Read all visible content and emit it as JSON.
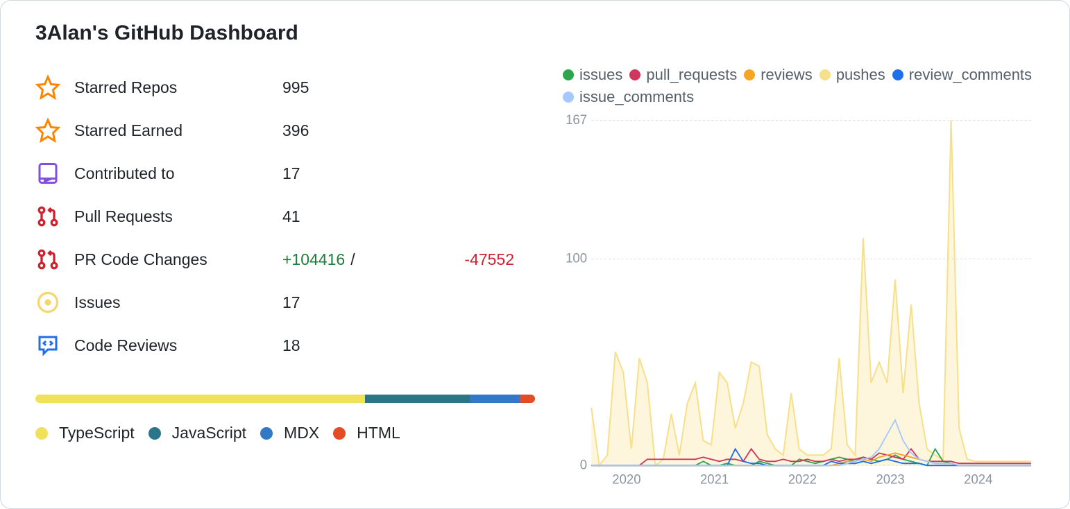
{
  "title": "3Alan's GitHub Dashboard",
  "stats": [
    {
      "icon": "star",
      "icon_color": "#fb8500",
      "label": "Starred Repos",
      "value": "995"
    },
    {
      "icon": "star",
      "icon_color": "#fb8500",
      "label": "Starred Earned",
      "value": "396"
    },
    {
      "icon": "repo",
      "icon_color": "#8250df",
      "label": "Contributed to",
      "value": "17"
    },
    {
      "icon": "pr",
      "icon_color": "#cf222e",
      "label": "Pull Requests",
      "value": "41"
    },
    {
      "icon": "pr",
      "icon_color": "#cf222e",
      "label": "PR Code Changes",
      "value": "",
      "additions": "+104416",
      "deletions": "-47552"
    },
    {
      "icon": "issue",
      "icon_color": "#f5d76e",
      "label": "Issues",
      "value": "17"
    },
    {
      "icon": "review",
      "icon_color": "#1f6feb",
      "label": "Code Reviews",
      "value": "18"
    }
  ],
  "languages": {
    "segments": [
      {
        "name": "TypeScript",
        "color": "#f1e05a",
        "pct": 66
      },
      {
        "name": "JavaScript",
        "color": "#2b7489",
        "pct": 21
      },
      {
        "name": "MDX",
        "color": "#3178c6",
        "pct": 10
      },
      {
        "name": "HTML",
        "color": "#e34c26",
        "pct": 3
      }
    ]
  },
  "chart": {
    "type": "area-line",
    "ylim": [
      0,
      167
    ],
    "yticks": [
      0,
      100,
      167
    ],
    "xlabels": [
      "2020",
      "2021",
      "2022",
      "2023",
      "2024"
    ],
    "background_color": "#ffffff",
    "grid_color": "#e0e0e0",
    "label_fontsize": 18,
    "label_color": "#8c959f",
    "series": [
      {
        "name": "issues",
        "color": "#2da44e",
        "fill": false
      },
      {
        "name": "pull_requests",
        "color": "#cf375d",
        "fill": false
      },
      {
        "name": "reviews",
        "color": "#f5a623",
        "fill": false
      },
      {
        "name": "pushes",
        "color": "#f7e08a",
        "fill": true,
        "fill_opacity": 0.3
      },
      {
        "name": "review_comments",
        "color": "#1f6feb",
        "fill": false
      },
      {
        "name": "issue_comments",
        "color": "#a6c8ff",
        "fill": false
      }
    ],
    "x_points": 56,
    "pushes": [
      28,
      0,
      5,
      55,
      45,
      8,
      52,
      40,
      0,
      3,
      25,
      5,
      30,
      40,
      12,
      10,
      45,
      40,
      18,
      30,
      50,
      48,
      15,
      8,
      5,
      35,
      8,
      5,
      5,
      5,
      8,
      52,
      10,
      5,
      110,
      40,
      50,
      40,
      90,
      35,
      78,
      30,
      8,
      5,
      3,
      167,
      18,
      3,
      2,
      2,
      2,
      2,
      2,
      2,
      2,
      2
    ],
    "issues": [
      0,
      0,
      0,
      0,
      0,
      0,
      0,
      0,
      0,
      0,
      0,
      0,
      0,
      0,
      2,
      0,
      0,
      1,
      0,
      0,
      0,
      2,
      1,
      0,
      0,
      0,
      3,
      2,
      1,
      2,
      3,
      4,
      3,
      2,
      4,
      3,
      2,
      3,
      5,
      3,
      2,
      1,
      0,
      8,
      2,
      1,
      0,
      0,
      0,
      0,
      0,
      0,
      0,
      0,
      0,
      0
    ],
    "pull_requests": [
      0,
      0,
      0,
      0,
      0,
      0,
      0,
      3,
      3,
      3,
      3,
      3,
      3,
      3,
      4,
      3,
      2,
      3,
      3,
      2,
      8,
      3,
      2,
      2,
      3,
      2,
      2,
      3,
      2,
      2,
      3,
      2,
      3,
      3,
      4,
      3,
      6,
      5,
      4,
      3,
      8,
      3,
      2,
      2,
      2,
      2,
      1,
      1,
      1,
      1,
      1,
      1,
      1,
      1,
      1,
      1
    ],
    "reviews": [
      0,
      0,
      0,
      0,
      0,
      0,
      0,
      0,
      0,
      0,
      0,
      0,
      0,
      0,
      0,
      0,
      0,
      0,
      0,
      0,
      0,
      0,
      0,
      0,
      0,
      0,
      0,
      0,
      0,
      0,
      0,
      1,
      2,
      2,
      3,
      2,
      4,
      5,
      6,
      5,
      4,
      3,
      2,
      1,
      1,
      1,
      0,
      0,
      0,
      0,
      0,
      0,
      0,
      0,
      0,
      0
    ],
    "review_comments": [
      0,
      0,
      0,
      0,
      0,
      0,
      0,
      0,
      0,
      0,
      0,
      0,
      0,
      0,
      0,
      0,
      0,
      0,
      8,
      2,
      1,
      1,
      0,
      0,
      0,
      0,
      0,
      0,
      0,
      0,
      2,
      1,
      1,
      1,
      2,
      1,
      2,
      3,
      2,
      1,
      1,
      1,
      0,
      0,
      0,
      0,
      0,
      0,
      0,
      0,
      0,
      0,
      0,
      0,
      0,
      0
    ],
    "issue_comments": [
      0,
      0,
      0,
      0,
      0,
      0,
      0,
      0,
      0,
      0,
      0,
      0,
      0,
      0,
      0,
      0,
      0,
      0,
      0,
      0,
      0,
      0,
      0,
      0,
      0,
      0,
      0,
      0,
      0,
      0,
      0,
      0,
      1,
      2,
      3,
      4,
      8,
      15,
      22,
      12,
      6,
      3,
      2,
      1,
      1,
      1,
      0,
      0,
      0,
      0,
      0,
      0,
      0,
      0,
      0,
      0
    ]
  }
}
